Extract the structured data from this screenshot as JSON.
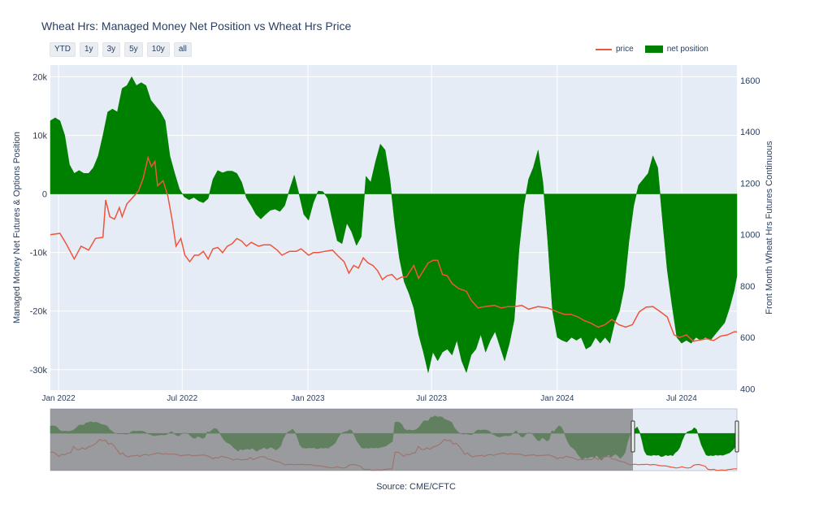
{
  "header": {
    "title": "Wheat Hrs: Managed Money Net Position vs Wheat Hrs Price",
    "range_buttons": [
      "YTD",
      "1y",
      "3y",
      "5y",
      "10y",
      "all"
    ],
    "source": "Source: CME/CFTC"
  },
  "colors": {
    "price": "#ef553b",
    "net_position": "#008000",
    "plot_bg": "#e5ecf6",
    "range_mask": "#808080"
  },
  "chart_data": {
    "type": "line",
    "title": "Wheat Hrs: Managed Money Net Position vs Wheat Hrs Price",
    "legend_position": "top-right",
    "grid": true,
    "xlabel": "",
    "x_ticks": [
      "Jan 2022",
      "Jul 2022",
      "Jan 2023",
      "Jul 2023",
      "Jan 2024",
      "Jul 2024"
    ],
    "x_range": [
      "2021-12-20",
      "2024-09-20"
    ],
    "y_left": {
      "label": "Managed Money Net Futures & Options Position",
      "ticks": [
        "20k",
        "10k",
        "0",
        "-10k",
        "-20k",
        "-30k"
      ],
      "range": [
        -33500,
        22000
      ]
    },
    "y_right": {
      "label": "Front Month Wheat Hrs Futures Continuous",
      "ticks": [
        "1600",
        "1400",
        "1200",
        "1000",
        "800",
        "600",
        "400"
      ],
      "range": [
        395,
        1660
      ]
    },
    "series": [
      {
        "name": "price",
        "axis": "right",
        "points": [
          [
            "2021-12-20",
            1000
          ],
          [
            "2022-01-03",
            1005
          ],
          [
            "2022-01-13",
            960
          ],
          [
            "2022-01-24",
            905
          ],
          [
            "2022-02-03",
            955
          ],
          [
            "2022-02-14",
            940
          ],
          [
            "2022-02-24",
            985
          ],
          [
            "2022-03-07",
            990
          ],
          [
            "2022-03-11",
            1135
          ],
          [
            "2022-03-17",
            1070
          ],
          [
            "2022-03-24",
            1060
          ],
          [
            "2022-03-31",
            1105
          ],
          [
            "2022-04-04",
            1070
          ],
          [
            "2022-04-11",
            1120
          ],
          [
            "2022-04-18",
            1140
          ],
          [
            "2022-04-28",
            1170
          ],
          [
            "2022-05-05",
            1220
          ],
          [
            "2022-05-12",
            1300
          ],
          [
            "2022-05-17",
            1265
          ],
          [
            "2022-05-22",
            1285
          ],
          [
            "2022-05-26",
            1190
          ],
          [
            "2022-06-03",
            1210
          ],
          [
            "2022-06-10",
            1150
          ],
          [
            "2022-06-16",
            1060
          ],
          [
            "2022-06-22",
            955
          ],
          [
            "2022-06-29",
            985
          ],
          [
            "2022-07-05",
            920
          ],
          [
            "2022-07-12",
            895
          ],
          [
            "2022-07-19",
            920
          ],
          [
            "2022-07-25",
            920
          ],
          [
            "2022-08-01",
            935
          ],
          [
            "2022-08-08",
            905
          ],
          [
            "2022-08-15",
            945
          ],
          [
            "2022-08-22",
            950
          ],
          [
            "2022-08-29",
            930
          ],
          [
            "2022-09-05",
            955
          ],
          [
            "2022-09-12",
            965
          ],
          [
            "2022-09-19",
            985
          ],
          [
            "2022-09-26",
            975
          ],
          [
            "2022-10-03",
            955
          ],
          [
            "2022-10-10",
            970
          ],
          [
            "2022-10-21",
            955
          ],
          [
            "2022-10-28",
            960
          ],
          [
            "2022-11-07",
            960
          ],
          [
            "2022-11-17",
            940
          ],
          [
            "2022-11-24",
            920
          ],
          [
            "2022-12-05",
            935
          ],
          [
            "2022-12-15",
            935
          ],
          [
            "2022-12-22",
            945
          ],
          [
            "2023-01-02",
            920
          ],
          [
            "2023-01-09",
            930
          ],
          [
            "2023-01-16",
            930
          ],
          [
            "2023-01-26",
            935
          ],
          [
            "2023-02-06",
            940
          ],
          [
            "2023-02-13",
            920
          ],
          [
            "2023-02-23",
            895
          ],
          [
            "2023-03-02",
            850
          ],
          [
            "2023-03-09",
            880
          ],
          [
            "2023-03-16",
            870
          ],
          [
            "2023-03-23",
            910
          ],
          [
            "2023-03-30",
            890
          ],
          [
            "2023-04-06",
            880
          ],
          [
            "2023-04-13",
            860
          ],
          [
            "2023-04-20",
            825
          ],
          [
            "2023-04-27",
            840
          ],
          [
            "2023-05-04",
            845
          ],
          [
            "2023-05-11",
            825
          ],
          [
            "2023-05-18",
            835
          ],
          [
            "2023-05-25",
            835
          ],
          [
            "2023-06-05",
            880
          ],
          [
            "2023-06-12",
            830
          ],
          [
            "2023-06-19",
            860
          ],
          [
            "2023-06-26",
            890
          ],
          [
            "2023-07-03",
            900
          ],
          [
            "2023-07-10",
            900
          ],
          [
            "2023-07-17",
            845
          ],
          [
            "2023-07-24",
            840
          ],
          [
            "2023-07-31",
            810
          ],
          [
            "2023-08-10",
            790
          ],
          [
            "2023-08-21",
            780
          ],
          [
            "2023-08-28",
            745
          ],
          [
            "2023-09-07",
            715
          ],
          [
            "2023-09-17",
            720
          ],
          [
            "2023-10-01",
            725
          ],
          [
            "2023-10-11",
            715
          ],
          [
            "2023-10-21",
            720
          ],
          [
            "2023-10-31",
            720
          ],
          [
            "2023-11-10",
            725
          ],
          [
            "2023-11-20",
            710
          ],
          [
            "2023-12-04",
            720
          ],
          [
            "2023-12-18",
            715
          ],
          [
            "2024-01-01",
            700
          ],
          [
            "2024-01-11",
            690
          ],
          [
            "2024-01-21",
            690
          ],
          [
            "2024-01-31",
            680
          ],
          [
            "2024-02-10",
            665
          ],
          [
            "2024-02-20",
            655
          ],
          [
            "2024-03-01",
            640
          ],
          [
            "2024-03-11",
            650
          ],
          [
            "2024-03-21",
            670
          ],
          [
            "2024-03-31",
            650
          ],
          [
            "2024-04-10",
            640
          ],
          [
            "2024-04-20",
            650
          ],
          [
            "2024-04-30",
            700
          ],
          [
            "2024-05-10",
            718
          ],
          [
            "2024-05-20",
            720
          ],
          [
            "2024-05-31",
            700
          ],
          [
            "2024-06-10",
            680
          ],
          [
            "2024-06-20",
            610
          ],
          [
            "2024-06-28",
            600
          ],
          [
            "2024-07-08",
            610
          ],
          [
            "2024-07-18",
            585
          ],
          [
            "2024-07-28",
            590
          ],
          [
            "2024-08-07",
            595
          ],
          [
            "2024-08-17",
            588
          ],
          [
            "2024-08-27",
            605
          ],
          [
            "2024-09-06",
            610
          ],
          [
            "2024-09-16",
            622
          ],
          [
            "2024-09-20",
            622
          ]
        ]
      },
      {
        "name": "net position",
        "axis": "left",
        "fill": "tozeroy",
        "points": [
          [
            "2021-12-20",
            12500
          ],
          [
            "2021-12-27",
            13000
          ],
          [
            "2022-01-03",
            12500
          ],
          [
            "2022-01-10",
            10000
          ],
          [
            "2022-01-17",
            5000
          ],
          [
            "2022-01-24",
            3500
          ],
          [
            "2022-01-31",
            4000
          ],
          [
            "2022-02-07",
            3500
          ],
          [
            "2022-02-14",
            3500
          ],
          [
            "2022-02-21",
            4500
          ],
          [
            "2022-02-28",
            6500
          ],
          [
            "2022-03-07",
            10000
          ],
          [
            "2022-03-14",
            14000
          ],
          [
            "2022-03-21",
            14500
          ],
          [
            "2022-03-28",
            14000
          ],
          [
            "2022-04-04",
            18000
          ],
          [
            "2022-04-11",
            18500
          ],
          [
            "2022-04-18",
            20000
          ],
          [
            "2022-04-25",
            18500
          ],
          [
            "2022-05-02",
            19000
          ],
          [
            "2022-05-09",
            18500
          ],
          [
            "2022-05-16",
            16000
          ],
          [
            "2022-05-23",
            15000
          ],
          [
            "2022-05-30",
            14000
          ],
          [
            "2022-06-06",
            12500
          ],
          [
            "2022-06-13",
            6500
          ],
          [
            "2022-06-20",
            3500
          ],
          [
            "2022-06-27",
            800
          ],
          [
            "2022-07-04",
            -500
          ],
          [
            "2022-07-11",
            -1000
          ],
          [
            "2022-07-18",
            -600
          ],
          [
            "2022-07-25",
            -1200
          ],
          [
            "2022-08-01",
            -1500
          ],
          [
            "2022-08-08",
            -800
          ],
          [
            "2022-08-15",
            2500
          ],
          [
            "2022-08-22",
            4000
          ],
          [
            "2022-08-29",
            3600
          ],
          [
            "2022-09-05",
            3900
          ],
          [
            "2022-09-12",
            3900
          ],
          [
            "2022-09-19",
            3500
          ],
          [
            "2022-09-26",
            2000
          ],
          [
            "2022-10-03",
            -700
          ],
          [
            "2022-10-10",
            -2000
          ],
          [
            "2022-10-17",
            -3500
          ],
          [
            "2022-10-24",
            -4300
          ],
          [
            "2022-10-31",
            -3500
          ],
          [
            "2022-11-07",
            -2800
          ],
          [
            "2022-11-14",
            -2600
          ],
          [
            "2022-11-21",
            -3000
          ],
          [
            "2022-11-28",
            -2000
          ],
          [
            "2022-12-05",
            700
          ],
          [
            "2022-12-12",
            3200
          ],
          [
            "2022-12-19",
            0
          ],
          [
            "2022-12-26",
            -3500
          ],
          [
            "2023-01-02",
            -4500
          ],
          [
            "2023-01-09",
            -1500
          ],
          [
            "2023-01-16",
            500
          ],
          [
            "2023-01-23",
            400
          ],
          [
            "2023-01-30",
            -800
          ],
          [
            "2023-02-06",
            -4500
          ],
          [
            "2023-02-13",
            -8000
          ],
          [
            "2023-02-20",
            -8500
          ],
          [
            "2023-02-27",
            -5000
          ],
          [
            "2023-03-06",
            -6500
          ],
          [
            "2023-03-13",
            -8800
          ],
          [
            "2023-03-20",
            -7300
          ],
          [
            "2023-03-27",
            3000
          ],
          [
            "2023-04-03",
            2000
          ],
          [
            "2023-04-10",
            5500
          ],
          [
            "2023-04-17",
            8500
          ],
          [
            "2023-04-24",
            7500
          ],
          [
            "2023-05-01",
            2500
          ],
          [
            "2023-05-08",
            -5000
          ],
          [
            "2023-05-15",
            -11000
          ],
          [
            "2023-05-22",
            -15000
          ],
          [
            "2023-05-29",
            -17000
          ],
          [
            "2023-06-05",
            -19500
          ],
          [
            "2023-06-12",
            -24000
          ],
          [
            "2023-06-19",
            -27000
          ],
          [
            "2023-06-26",
            -30500
          ],
          [
            "2023-07-03",
            -27000
          ],
          [
            "2023-07-10",
            -28500
          ],
          [
            "2023-07-17",
            -27000
          ],
          [
            "2023-07-24",
            -26500
          ],
          [
            "2023-07-31",
            -27500
          ],
          [
            "2023-08-07",
            -25000
          ],
          [
            "2023-08-14",
            -28500
          ],
          [
            "2023-08-21",
            -30500
          ],
          [
            "2023-08-28",
            -27500
          ],
          [
            "2023-09-04",
            -26500
          ],
          [
            "2023-09-11",
            -24000
          ],
          [
            "2023-09-18",
            -27000
          ],
          [
            "2023-09-25",
            -25000
          ],
          [
            "2023-10-02",
            -23500
          ],
          [
            "2023-10-09",
            -26000
          ],
          [
            "2023-10-16",
            -28500
          ],
          [
            "2023-10-23",
            -25500
          ],
          [
            "2023-10-30",
            -21500
          ],
          [
            "2023-11-06",
            -9500
          ],
          [
            "2023-11-13",
            -2000
          ],
          [
            "2023-11-20",
            2500
          ],
          [
            "2023-11-27",
            4500
          ],
          [
            "2023-12-04",
            7500
          ],
          [
            "2023-12-11",
            2000
          ],
          [
            "2023-12-18",
            -8000
          ],
          [
            "2023-12-25",
            -20000
          ],
          [
            "2024-01-01",
            -24500
          ],
          [
            "2024-01-08",
            -25000
          ],
          [
            "2024-01-15",
            -25300
          ],
          [
            "2024-01-22",
            -24500
          ],
          [
            "2024-01-29",
            -25000
          ],
          [
            "2024-02-05",
            -24500
          ],
          [
            "2024-02-12",
            -26500
          ],
          [
            "2024-02-19",
            -26000
          ],
          [
            "2024-02-26",
            -24500
          ],
          [
            "2024-03-04",
            -25500
          ],
          [
            "2024-03-11",
            -24500
          ],
          [
            "2024-03-18",
            -25500
          ],
          [
            "2024-03-25",
            -22000
          ],
          [
            "2024-04-01",
            -20000
          ],
          [
            "2024-04-08",
            -16000
          ],
          [
            "2024-04-15",
            -8000
          ],
          [
            "2024-04-22",
            -2000
          ],
          [
            "2024-04-29",
            1500
          ],
          [
            "2024-05-06",
            2500
          ],
          [
            "2024-05-13",
            3500
          ],
          [
            "2024-05-20",
            6500
          ],
          [
            "2024-05-27",
            4500
          ],
          [
            "2024-06-03",
            -4500
          ],
          [
            "2024-06-10",
            -13000
          ],
          [
            "2024-06-17",
            -19000
          ],
          [
            "2024-06-24",
            -24500
          ],
          [
            "2024-07-01",
            -25500
          ],
          [
            "2024-07-08",
            -25000
          ],
          [
            "2024-07-15",
            -25500
          ],
          [
            "2024-07-22",
            -24500
          ],
          [
            "2024-07-29",
            -25000
          ],
          [
            "2024-08-05",
            -24500
          ],
          [
            "2024-08-12",
            -25000
          ],
          [
            "2024-08-19",
            -24000
          ],
          [
            "2024-08-26",
            -23000
          ],
          [
            "2024-09-02",
            -22000
          ],
          [
            "2024-09-09",
            -19500
          ],
          [
            "2024-09-16",
            -16500
          ],
          [
            "2024-09-20",
            -14000
          ]
        ]
      }
    ]
  }
}
